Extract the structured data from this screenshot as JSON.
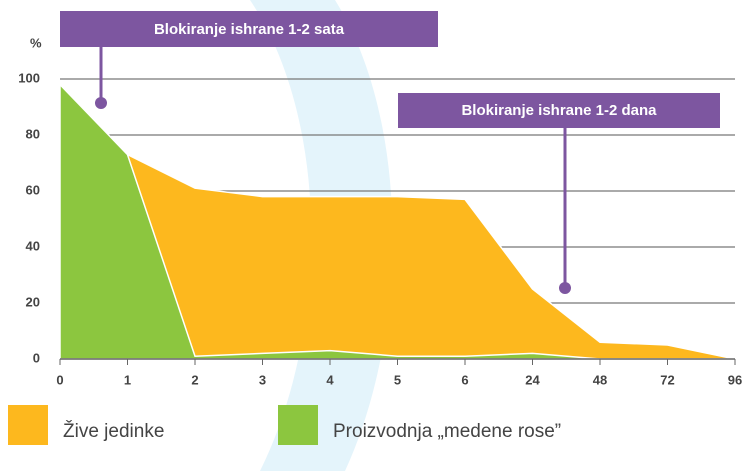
{
  "chart_data": {
    "type": "area",
    "y_label": "%",
    "categories": [
      "0",
      "1",
      "2",
      "3",
      "4",
      "5",
      "6",
      "24",
      "48",
      "72",
      "96"
    ],
    "series": [
      {
        "name": "Žive jedinke",
        "color": "#fdb81e",
        "values": [
          null,
          73,
          61,
          58,
          58,
          58,
          57,
          25,
          6,
          5,
          0
        ]
      },
      {
        "name": "Proizvodnja „medene rose”",
        "color": "#8cc63f",
        "values": [
          98,
          73,
          1,
          2,
          3,
          1,
          1,
          2,
          0,
          0,
          0
        ]
      }
    ],
    "annotations": [
      "Blokiranje ishrane 1-2 sata",
      "Blokiranje ishrane 1-2 dana"
    ],
    "ylim": [
      0,
      100
    ],
    "yticks": [
      0,
      20,
      40,
      60,
      80,
      100
    ],
    "grid": true
  }
}
